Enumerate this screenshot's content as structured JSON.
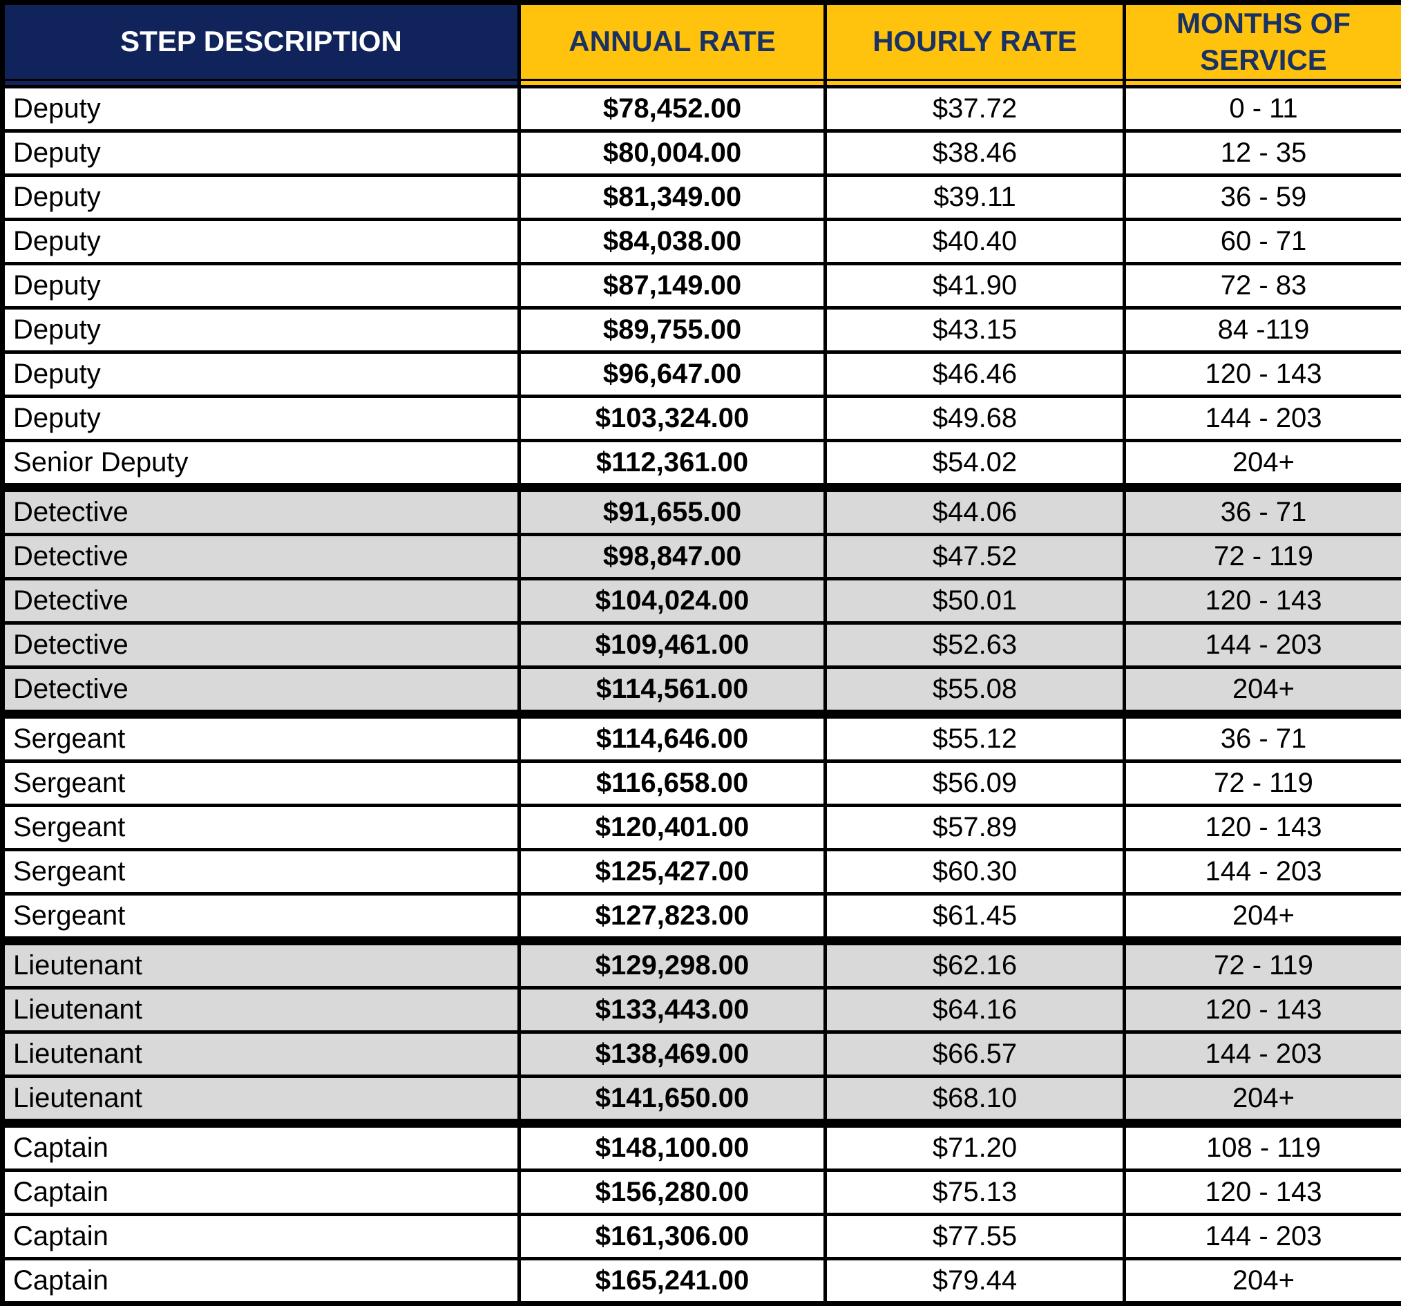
{
  "colors": {
    "navy": "#10235A",
    "gold": "#FFC20D",
    "header_text_on_gold": "#1A3263",
    "header_text_on_navy": "#FFFFFF",
    "shaded_row": "#D9D9D9",
    "border": "#000000"
  },
  "table": {
    "columns": [
      {
        "label": "STEP DESCRIPTION"
      },
      {
        "label": "ANNUAL RATE"
      },
      {
        "label": "HOURLY RATE"
      },
      {
        "label": "MONTHS OF SERVICE"
      }
    ],
    "groups": [
      {
        "shaded": false,
        "rows": [
          {
            "step": "Deputy",
            "annual": "$78,452.00",
            "hourly": "$37.72",
            "months": "0 - 11"
          },
          {
            "step": "Deputy",
            "annual": "$80,004.00",
            "hourly": "$38.46",
            "months": "12 - 35"
          },
          {
            "step": "Deputy",
            "annual": "$81,349.00",
            "hourly": "$39.11",
            "months": "36 - 59"
          },
          {
            "step": "Deputy",
            "annual": "$84,038.00",
            "hourly": "$40.40",
            "months": "60 - 71"
          },
          {
            "step": "Deputy",
            "annual": "$87,149.00",
            "hourly": "$41.90",
            "months": "72 - 83"
          },
          {
            "step": "Deputy",
            "annual": "$89,755.00",
            "hourly": "$43.15",
            "months": "84 -119"
          },
          {
            "step": "Deputy",
            "annual": "$96,647.00",
            "hourly": "$46.46",
            "months": "120 - 143"
          },
          {
            "step": "Deputy",
            "annual": "$103,324.00",
            "hourly": "$49.68",
            "months": "144 - 203"
          },
          {
            "step": "Senior Deputy",
            "annual": "$112,361.00",
            "hourly": "$54.02",
            "months": "204+"
          }
        ]
      },
      {
        "shaded": true,
        "rows": [
          {
            "step": "Detective",
            "annual": "$91,655.00",
            "hourly": "$44.06",
            "months": "36 - 71"
          },
          {
            "step": "Detective",
            "annual": "$98,847.00",
            "hourly": "$47.52",
            "months": "72 - 119"
          },
          {
            "step": "Detective",
            "annual": "$104,024.00",
            "hourly": "$50.01",
            "months": "120 - 143"
          },
          {
            "step": "Detective",
            "annual": "$109,461.00",
            "hourly": "$52.63",
            "months": "144 - 203"
          },
          {
            "step": "Detective",
            "annual": "$114,561.00",
            "hourly": "$55.08",
            "months": "204+"
          }
        ]
      },
      {
        "shaded": false,
        "rows": [
          {
            "step": "Sergeant",
            "annual": "$114,646.00",
            "hourly": "$55.12",
            "months": "36 - 71"
          },
          {
            "step": "Sergeant",
            "annual": "$116,658.00",
            "hourly": "$56.09",
            "months": "72 - 119"
          },
          {
            "step": "Sergeant",
            "annual": "$120,401.00",
            "hourly": "$57.89",
            "months": "120 - 143"
          },
          {
            "step": "Sergeant",
            "annual": "$125,427.00",
            "hourly": "$60.30",
            "months": "144 - 203"
          },
          {
            "step": "Sergeant",
            "annual": "$127,823.00",
            "hourly": "$61.45",
            "months": "204+"
          }
        ]
      },
      {
        "shaded": true,
        "rows": [
          {
            "step": "Lieutenant",
            "annual": "$129,298.00",
            "hourly": "$62.16",
            "months": "72 - 119"
          },
          {
            "step": "Lieutenant",
            "annual": "$133,443.00",
            "hourly": "$64.16",
            "months": "120 - 143"
          },
          {
            "step": "Lieutenant",
            "annual": "$138,469.00",
            "hourly": "$66.57",
            "months": "144 - 203"
          },
          {
            "step": "Lieutenant",
            "annual": "$141,650.00",
            "hourly": "$68.10",
            "months": "204+"
          }
        ]
      },
      {
        "shaded": false,
        "rows": [
          {
            "step": "Captain",
            "annual": "$148,100.00",
            "hourly": "$71.20",
            "months": "108 - 119"
          },
          {
            "step": "Captain",
            "annual": "$156,280.00",
            "hourly": "$75.13",
            "months": "120 - 143"
          },
          {
            "step": "Captain",
            "annual": "$161,306.00",
            "hourly": "$77.55",
            "months": "144 - 203"
          },
          {
            "step": "Captain",
            "annual": "$165,241.00",
            "hourly": "$79.44",
            "months": "204+"
          }
        ]
      }
    ]
  }
}
